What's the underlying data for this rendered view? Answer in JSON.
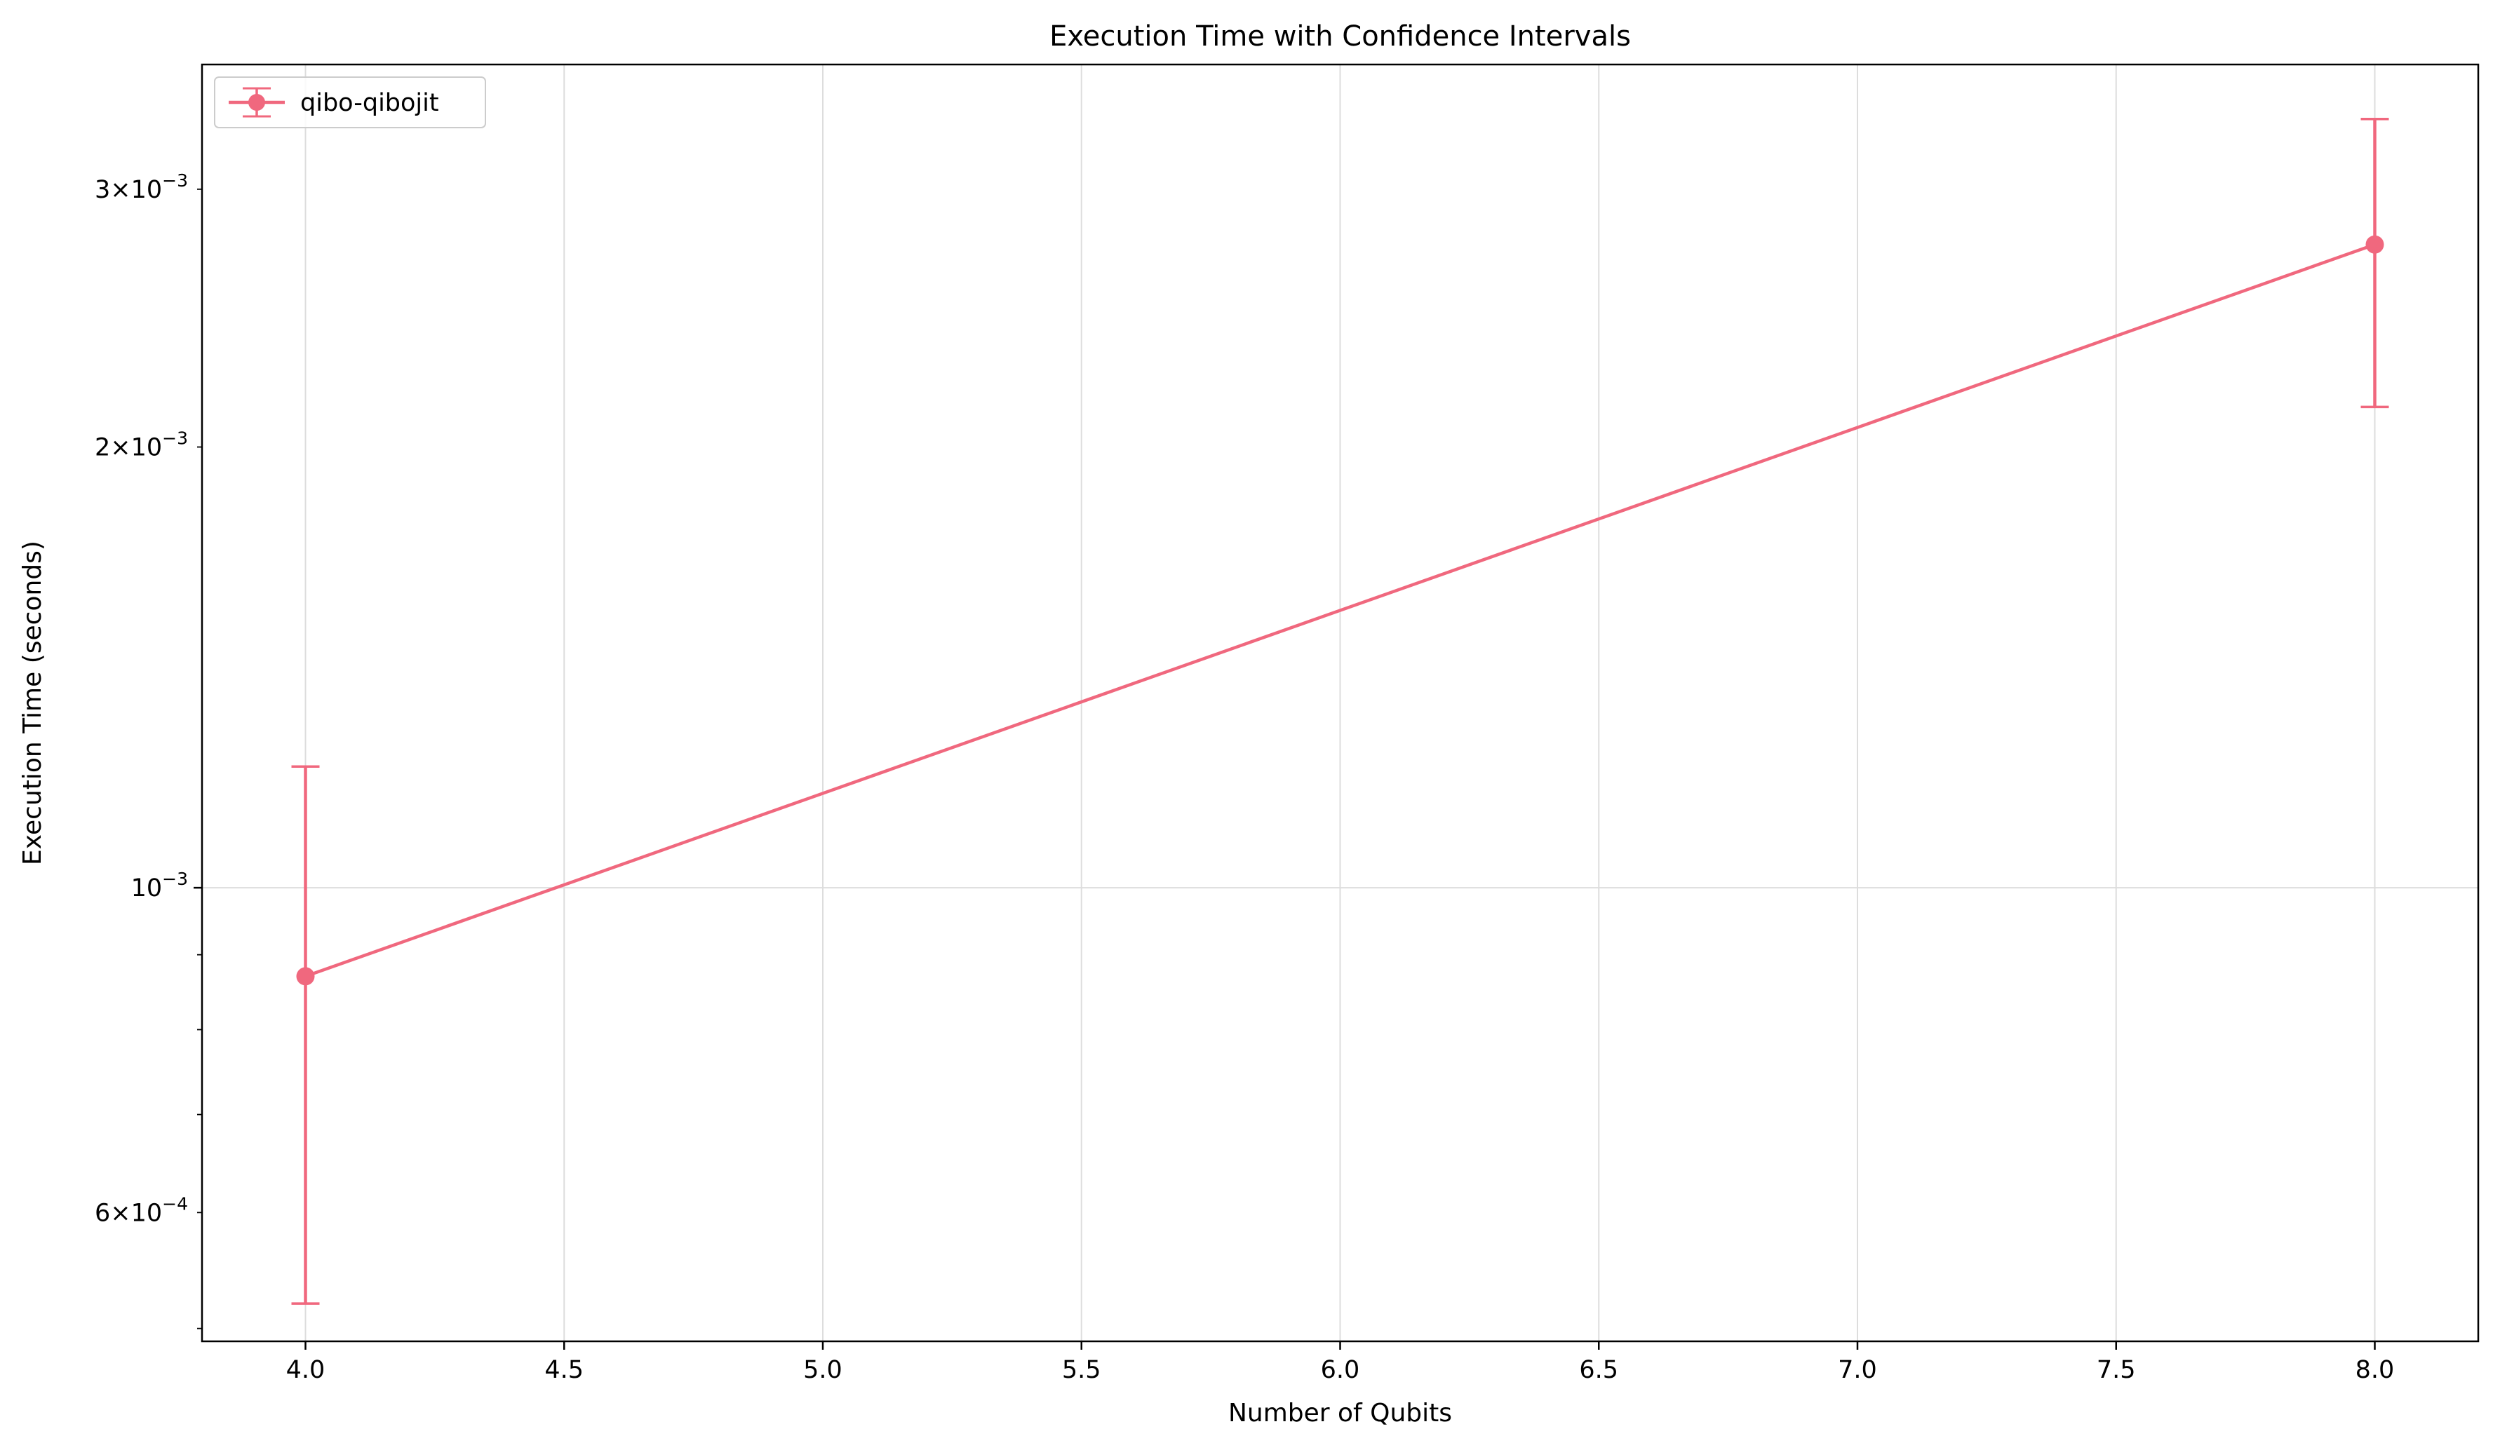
{
  "chart_data": {
    "type": "line",
    "title": "Execution Time with Confidence Intervals",
    "xlabel": "Number of Qubits",
    "ylabel": "Execution Time (seconds)",
    "xlim": [
      3.8,
      8.2
    ],
    "ylim": [
      0.00049,
      0.00365
    ],
    "yscale": "log",
    "grid": true,
    "legend_position": "top-left",
    "x_ticks": [
      {
        "value": 4.0,
        "label": "4.0"
      },
      {
        "value": 4.5,
        "label": "4.5"
      },
      {
        "value": 5.0,
        "label": "5.0"
      },
      {
        "value": 5.5,
        "label": "5.5"
      },
      {
        "value": 6.0,
        "label": "6.0"
      },
      {
        "value": 6.5,
        "label": "6.5"
      },
      {
        "value": 7.0,
        "label": "7.0"
      },
      {
        "value": 7.5,
        "label": "7.5"
      },
      {
        "value": 8.0,
        "label": "8.0"
      }
    ],
    "y_major_ticks": [
      {
        "value": 0.001,
        "base": "10",
        "exp": "−3"
      }
    ],
    "y_minor_ticks": [
      {
        "value": 0.0006,
        "mantissa": "6",
        "exp": "−4"
      },
      {
        "value": 0.002,
        "mantissa": "2",
        "exp": "−3"
      },
      {
        "value": 0.003,
        "mantissa": "3",
        "exp": "−3"
      }
    ],
    "y_minor_unlabeled": [
      0.0005,
      0.0007,
      0.0008,
      0.0009
    ],
    "series": [
      {
        "name": "qibo-qibojit",
        "color": "#f0687e",
        "x": [
          4,
          8
        ],
        "y": [
          0.00087,
          0.00275
        ],
        "y_lower": [
          0.00052,
          0.00213
        ],
        "y_upper": [
          0.00121,
          0.00335
        ]
      }
    ]
  }
}
